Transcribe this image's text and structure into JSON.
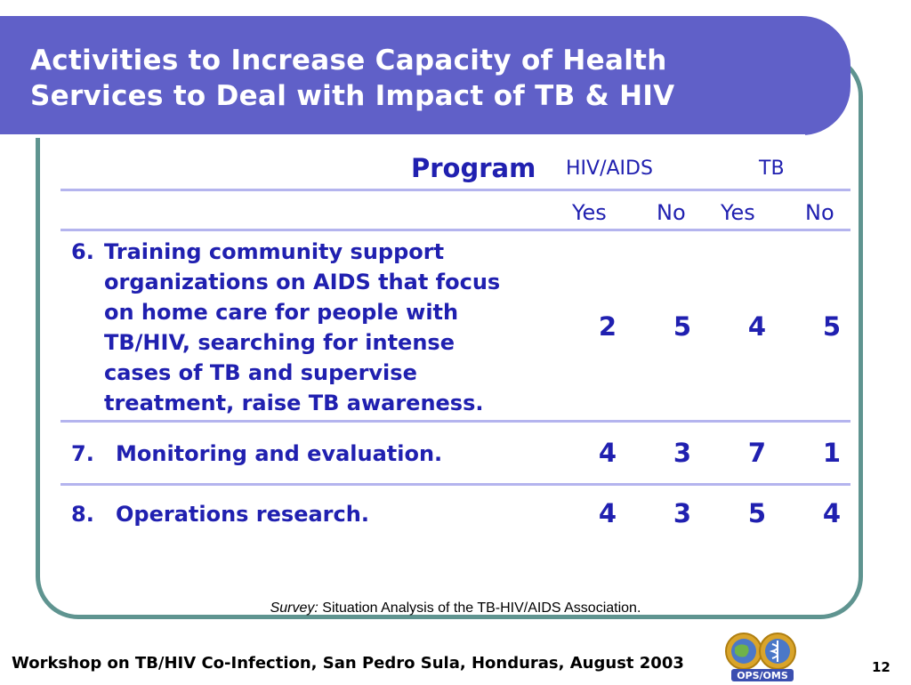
{
  "title": {
    "line1": "Activities to Increase Capacity of Health",
    "line2": "Services to Deal with Impact of TB & HIV"
  },
  "table": {
    "program_label": "Program",
    "group_headers": [
      "HIV/AIDS",
      "TB"
    ],
    "sub_headers": [
      "Yes",
      "No",
      "Yes",
      "No"
    ],
    "rows": [
      {
        "number": "6.",
        "text_lines": [
          "Training community support",
          "organizations on AIDS that focus",
          "on home care for people with",
          "TB/HIV, searching for intense",
          "cases of TB and supervise",
          "treatment, raise TB awareness."
        ],
        "values": [
          "2",
          "5",
          "4",
          "5"
        ]
      },
      {
        "number": "7.",
        "text": "Monitoring and evaluation.",
        "values": [
          "4",
          "3",
          "7",
          "1"
        ]
      },
      {
        "number": "8.",
        "text": "Operations research.",
        "values": [
          "4",
          "3",
          "5",
          "4"
        ]
      }
    ]
  },
  "survey": {
    "label": "Survey:",
    "text": " Situation Analysis of the TB-HIV/AIDS Association."
  },
  "footer": {
    "text": "Workshop on TB/HIV Co-Infection, San Pedro Sula, Honduras, August 2003",
    "page_number": "12",
    "logo_text": "OPS/OMS"
  },
  "colors": {
    "title_band": "#6060c8",
    "frame_border": "#5f9490",
    "text_blue": "#2020b0",
    "rule": "#b4b4ee"
  }
}
